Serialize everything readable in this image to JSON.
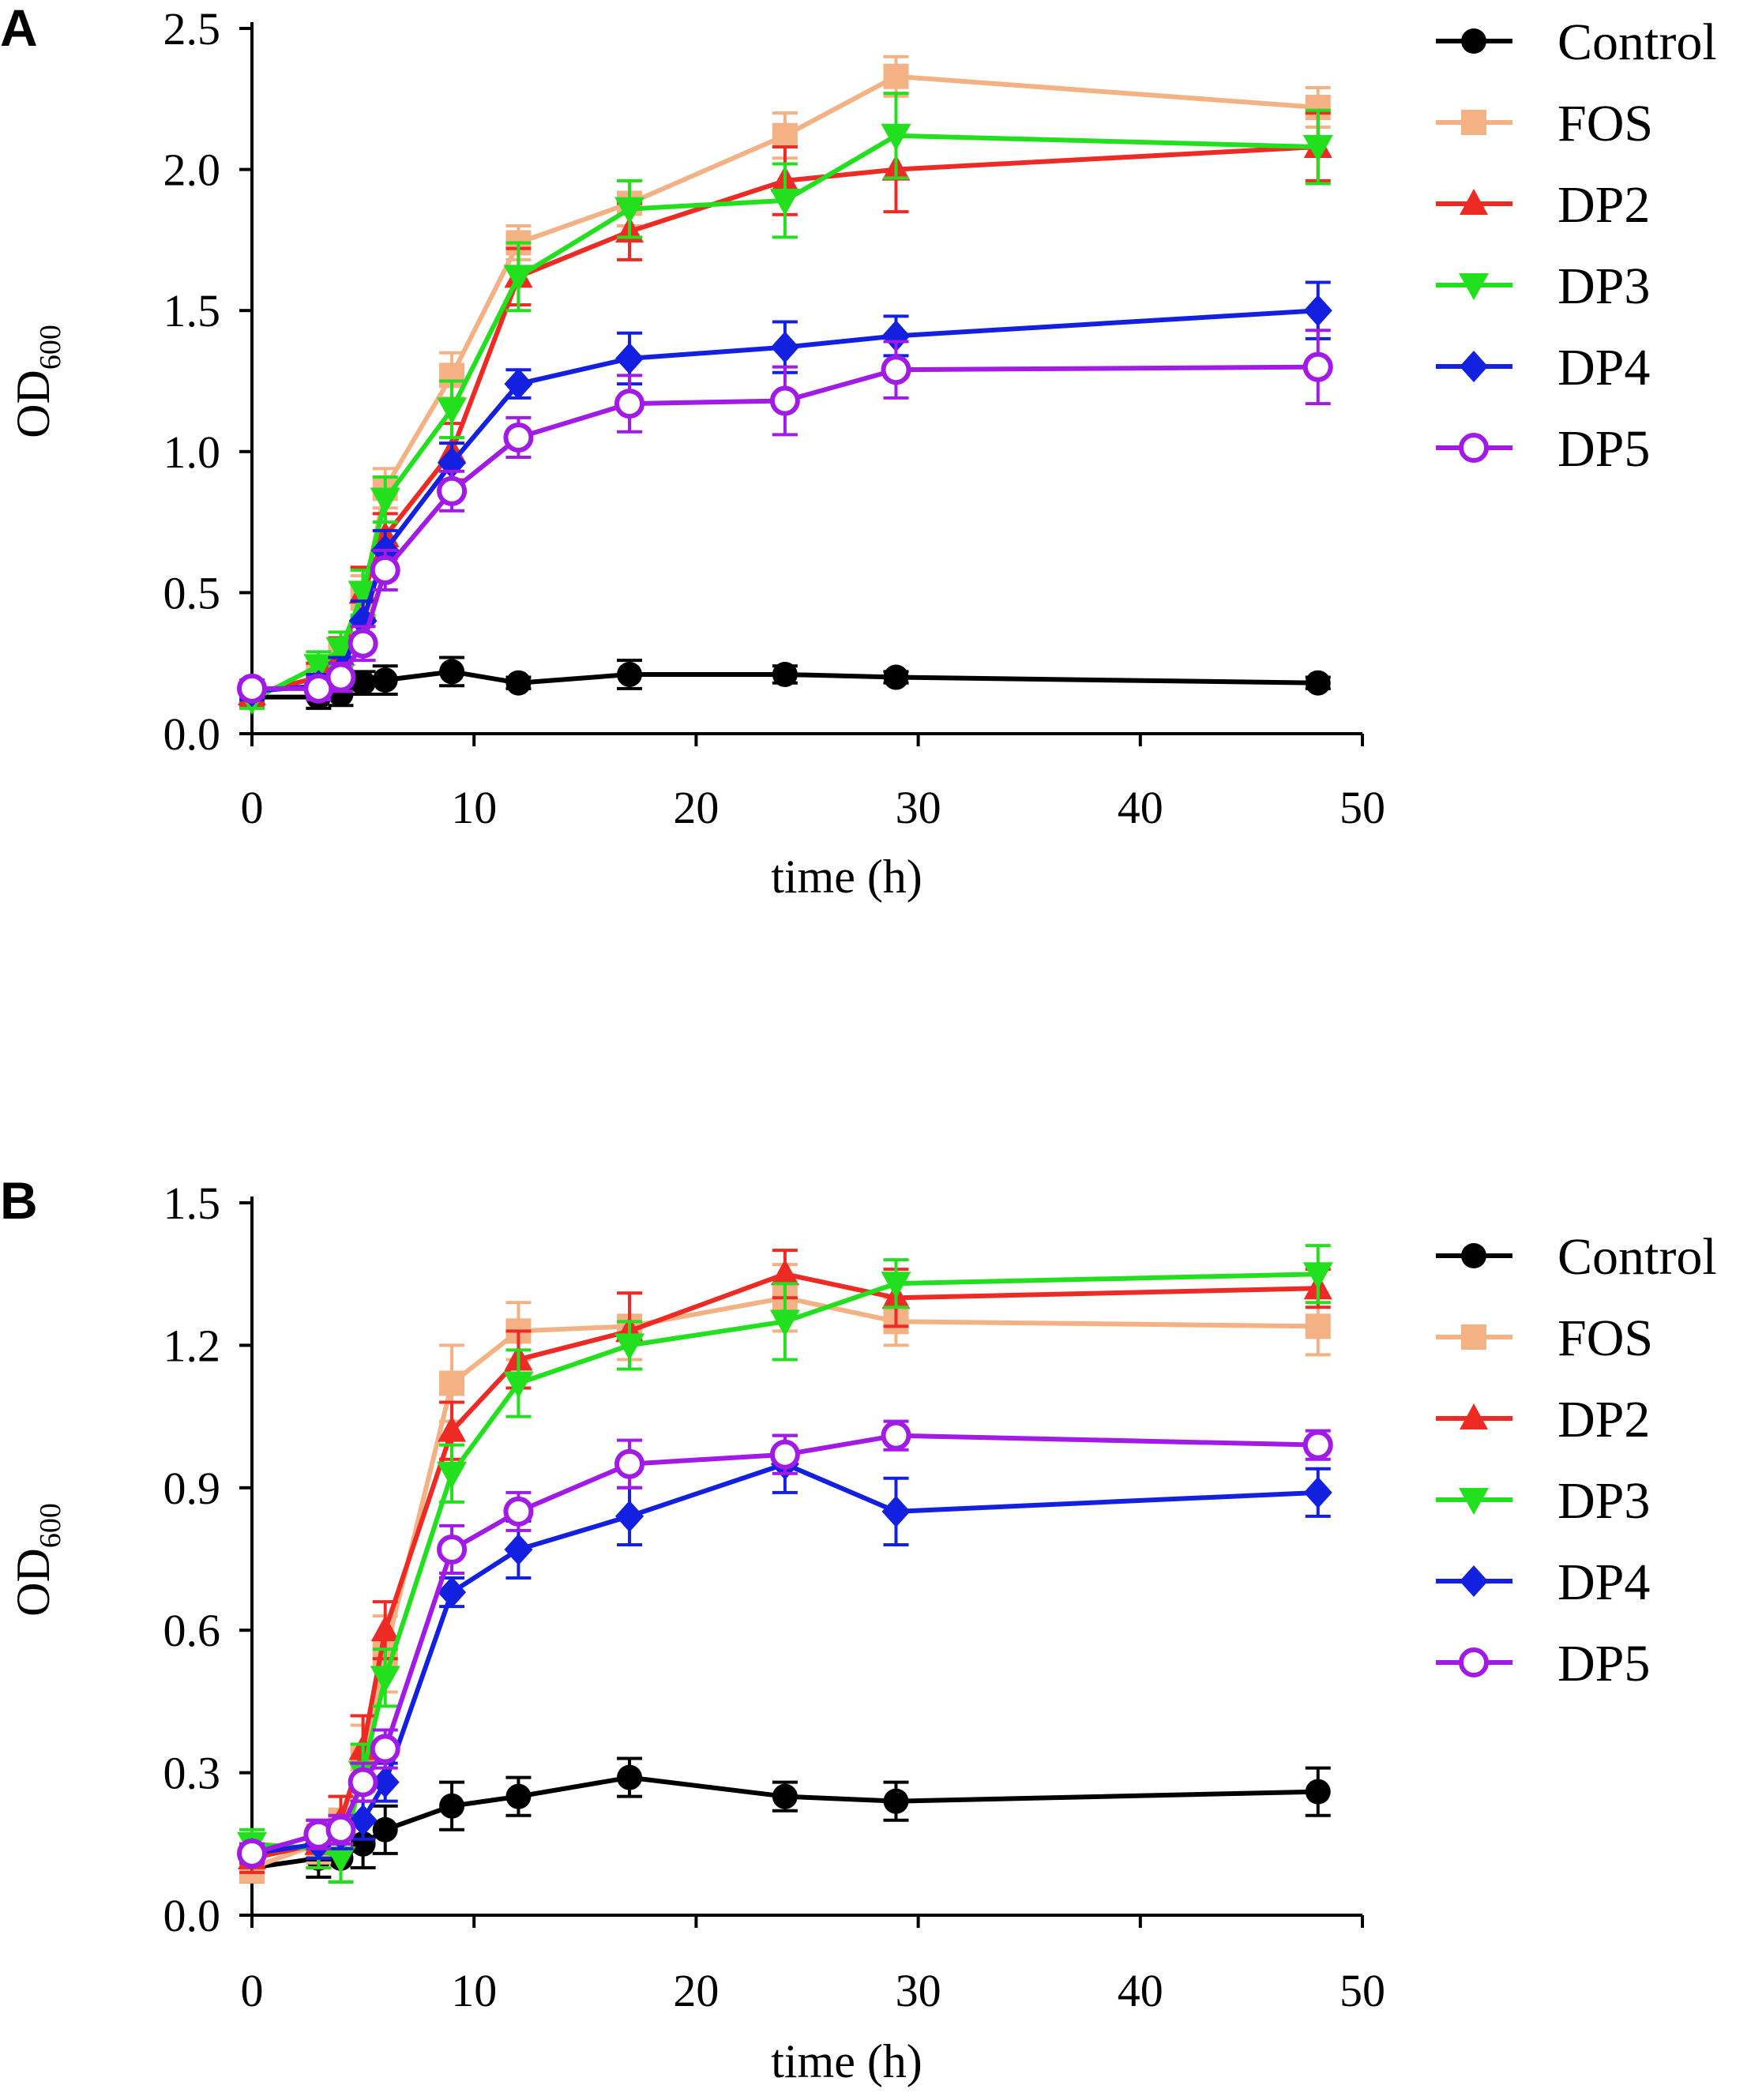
{
  "figure": {
    "panels": [
      "A",
      "B"
    ]
  },
  "series_styles": [
    {
      "name": "Control",
      "color": "#000000",
      "marker": "circle-filled"
    },
    {
      "name": "FOS",
      "color": "#F4B183",
      "marker": "square"
    },
    {
      "name": "DP2",
      "color": "#EE2A24",
      "marker": "triangle-up"
    },
    {
      "name": "DP3",
      "color": "#22E01E",
      "marker": "triangle-down"
    },
    {
      "name": "DP4",
      "color": "#1420E0",
      "marker": "diamond"
    },
    {
      "name": "DP5",
      "color": "#A21AE6",
      "marker": "circle-open"
    }
  ],
  "chart_data": [
    {
      "panel": "A",
      "type": "line",
      "title": "",
      "xlabel": "time (h)",
      "ylabel_main": "OD",
      "ylabel_sub": "600",
      "xlim": [
        0,
        50
      ],
      "ylim": [
        0,
        2.5
      ],
      "xticks": [
        "0",
        "10",
        "20",
        "30",
        "40",
        "50"
      ],
      "yticks": [
        "0.0",
        "0.5",
        "1.0",
        "1.5",
        "2.0",
        "2.5"
      ],
      "xtick_values": [
        0,
        10,
        20,
        30,
        40,
        50
      ],
      "ytick_values": [
        0,
        0.5,
        1.0,
        1.5,
        2.0,
        2.5
      ],
      "x": [
        0,
        3,
        4,
        5,
        6,
        9,
        12,
        17,
        24,
        29,
        48
      ],
      "series": [
        {
          "name": "Control",
          "values": [
            0.13,
            0.13,
            0.14,
            0.18,
            0.19,
            0.22,
            0.18,
            0.21,
            0.21,
            0.2,
            0.18
          ],
          "errors": [
            0.03,
            0.04,
            0.04,
            0.04,
            0.05,
            0.05,
            0.02,
            0.05,
            0.03,
            0.02,
            0.02
          ]
        },
        {
          "name": "FOS",
          "values": [
            0.14,
            0.2,
            0.28,
            0.48,
            0.87,
            1.27,
            1.74,
            1.88,
            2.12,
            2.33,
            2.22
          ],
          "errors": [
            0.04,
            0.05,
            0.06,
            0.08,
            0.07,
            0.08,
            0.06,
            0.08,
            0.08,
            0.07,
            0.07
          ]
        },
        {
          "name": "DP2",
          "values": [
            0.14,
            0.2,
            0.28,
            0.5,
            0.7,
            1.0,
            1.62,
            1.78,
            1.96,
            2.0,
            2.08
          ],
          "errors": [
            0.04,
            0.05,
            0.06,
            0.09,
            0.08,
            0.1,
            0.1,
            0.1,
            0.12,
            0.15,
            0.12
          ]
        },
        {
          "name": "DP3",
          "values": [
            0.12,
            0.24,
            0.3,
            0.5,
            0.83,
            1.15,
            1.62,
            1.86,
            1.89,
            2.12,
            2.08
          ],
          "errors": [
            0.03,
            0.05,
            0.06,
            0.08,
            0.08,
            0.1,
            0.12,
            0.1,
            0.13,
            0.15,
            0.13
          ]
        },
        {
          "name": "DP4",
          "values": [
            0.15,
            0.17,
            0.22,
            0.4,
            0.65,
            0.96,
            1.24,
            1.33,
            1.37,
            1.41,
            1.5
          ],
          "errors": [
            0.03,
            0.04,
            0.05,
            0.07,
            0.07,
            0.07,
            0.05,
            0.09,
            0.09,
            0.07,
            0.1
          ]
        },
        {
          "name": "DP5",
          "values": [
            0.16,
            0.16,
            0.2,
            0.32,
            0.58,
            0.86,
            1.05,
            1.17,
            1.18,
            1.29,
            1.3
          ],
          "errors": [
            0.03,
            0.04,
            0.05,
            0.06,
            0.07,
            0.07,
            0.07,
            0.1,
            0.12,
            0.1,
            0.13
          ]
        }
      ],
      "legend": "right"
    },
    {
      "panel": "B",
      "type": "line",
      "title": "",
      "xlabel": "time (h)",
      "ylabel_main": "OD",
      "ylabel_sub": "600",
      "xlim": [
        0,
        50
      ],
      "ylim": [
        0,
        1.5
      ],
      "xticks": [
        "0",
        "10",
        "20",
        "30",
        "40",
        "50"
      ],
      "yticks": [
        "0.0",
        "0.3",
        "0.6",
        "0.9",
        "1.2",
        "1.5"
      ],
      "xtick_values": [
        0,
        10,
        20,
        30,
        40,
        50
      ],
      "ytick_values": [
        0,
        0.3,
        0.6,
        0.9,
        1.2,
        1.5
      ],
      "x": [
        0,
        3,
        4,
        5,
        6,
        9,
        12,
        17,
        24,
        29,
        48
      ],
      "series": [
        {
          "name": "Control",
          "values": [
            0.1,
            0.12,
            0.12,
            0.15,
            0.18,
            0.23,
            0.25,
            0.29,
            0.25,
            0.24,
            0.26
          ],
          "errors": [
            0.03,
            0.04,
            0.05,
            0.05,
            0.05,
            0.05,
            0.04,
            0.04,
            0.03,
            0.04,
            0.05
          ]
        },
        {
          "name": "FOS",
          "values": [
            0.1,
            0.15,
            0.2,
            0.33,
            0.55,
            1.12,
            1.23,
            1.24,
            1.3,
            1.25,
            1.24
          ],
          "errors": [
            0.03,
            0.04,
            0.05,
            0.07,
            0.08,
            0.08,
            0.06,
            0.07,
            0.07,
            0.05,
            0.06
          ]
        },
        {
          "name": "DP2",
          "values": [
            0.12,
            0.15,
            0.2,
            0.35,
            0.6,
            1.02,
            1.17,
            1.23,
            1.35,
            1.3,
            1.32
          ],
          "errors": [
            0.03,
            0.05,
            0.05,
            0.07,
            0.06,
            0.06,
            0.06,
            0.08,
            0.05,
            0.06,
            0.04
          ]
        },
        {
          "name": "DP3",
          "values": [
            0.15,
            0.14,
            0.12,
            0.3,
            0.5,
            0.93,
            1.12,
            1.2,
            1.25,
            1.33,
            1.35
          ],
          "errors": [
            0.03,
            0.04,
            0.05,
            0.06,
            0.06,
            0.06,
            0.07,
            0.05,
            0.08,
            0.05,
            0.06
          ]
        },
        {
          "name": "DP4",
          "values": [
            0.13,
            0.15,
            0.17,
            0.2,
            0.28,
            0.68,
            0.77,
            0.84,
            0.95,
            0.85,
            0.89
          ],
          "errors": [
            0.02,
            0.03,
            0.03,
            0.04,
            0.04,
            0.03,
            0.06,
            0.06,
            0.06,
            0.07,
            0.05
          ]
        },
        {
          "name": "DP5",
          "values": [
            0.13,
            0.17,
            0.18,
            0.28,
            0.35,
            0.77,
            0.85,
            0.95,
            0.97,
            1.01,
            0.99
          ],
          "errors": [
            0.02,
            0.03,
            0.03,
            0.04,
            0.04,
            0.05,
            0.04,
            0.05,
            0.04,
            0.03,
            0.03
          ]
        }
      ],
      "legend": "right"
    }
  ]
}
